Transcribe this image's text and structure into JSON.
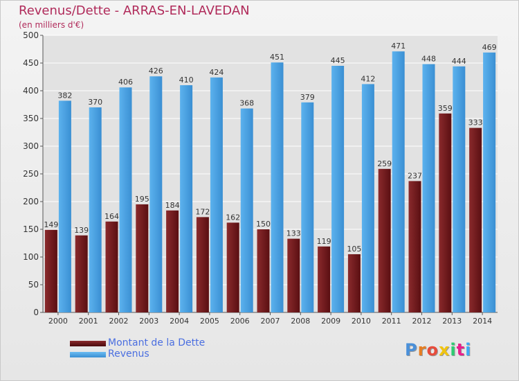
{
  "title": "Revenus/Dette - ARRAS-EN-LAVEDAN",
  "subtitle": "(en milliers d'€)",
  "logo": {
    "text": "Proxiti",
    "letter_colors": [
      "#4a90d9",
      "#e67e22",
      "#e74c3c",
      "#f1c40f",
      "#2ecc71",
      "#e91e8c",
      "#3fa9f5"
    ]
  },
  "colors": {
    "dette": "#7a1f22",
    "revenus": "#4ba3e3",
    "grid": "#ffffff",
    "axis_text": "#333333",
    "title": "#b02a5a"
  },
  "chart_data": {
    "type": "bar",
    "title": "Revenus/Dette - ARRAS-EN-LAVEDAN",
    "subtitle": "(en milliers d'€)",
    "categories": [
      "2000",
      "2001",
      "2002",
      "2003",
      "2004",
      "2005",
      "2006",
      "2007",
      "2008",
      "2009",
      "2010",
      "2011",
      "2012",
      "2013",
      "2014"
    ],
    "series": [
      {
        "name": "Montant de la Dette",
        "values": [
          149,
          139,
          164,
          195,
          184,
          172,
          162,
          150,
          133,
          119,
          105,
          259,
          237,
          359,
          333
        ]
      },
      {
        "name": "Revenus",
        "values": [
          382,
          370,
          406,
          426,
          410,
          424,
          368,
          451,
          379,
          445,
          412,
          471,
          448,
          444,
          469
        ]
      }
    ],
    "ylim": [
      0,
      500
    ],
    "yticks": [
      0,
      50,
      100,
      150,
      200,
      250,
      300,
      350,
      400,
      450,
      500
    ],
    "grid": true,
    "legend": "bottom-left"
  }
}
